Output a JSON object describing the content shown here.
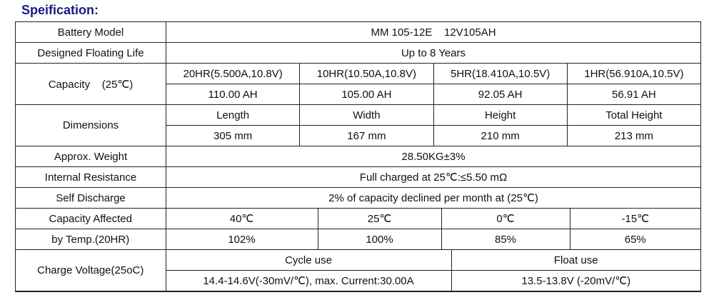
{
  "title": "Speification:",
  "battery_model": {
    "label": "Battery Model",
    "value": "MM 105-12E    12V105AH"
  },
  "floating_life": {
    "label": "Designed Floating Life",
    "value": "Up to 8 Years"
  },
  "capacity": {
    "label": "Capacity    (25℃)",
    "headers": [
      "20HR(5.500A,10.8V)",
      "10HR(10.50A,10.8V)",
      "5HR(18.410A,10.5V)",
      "1HR(56.910A,10.5V)"
    ],
    "values": [
      "110.00 AH",
      "105.00 AH",
      "92.05 AH",
      "56.91 AH"
    ]
  },
  "dimensions": {
    "label": "Dimensions",
    "headers": [
      "Length",
      "Width",
      "Height",
      "Total Height"
    ],
    "values": [
      "305 mm",
      "167 mm",
      "210 mm",
      "213 mm"
    ]
  },
  "weight": {
    "label": "Approx. Weight",
    "value": "28.50KG±3%"
  },
  "resistance": {
    "label": "Internal Resistance",
    "value": "Full charged at 25℃:≤5.50 mΩ"
  },
  "self_discharge": {
    "label": "Self Discharge",
    "value": "2% of capacity declined per month at (25℃)"
  },
  "temp": {
    "label1": "Capacity Affected",
    "label2": "by Temp.(20HR)",
    "headers": [
      "40℃",
      "25℃",
      "0℃",
      "-15℃"
    ],
    "values": [
      "102%",
      "100%",
      "85%",
      "65%"
    ]
  },
  "charge": {
    "label": "Charge Voltage(25oC)",
    "headers": [
      "Cycle use",
      "Float use"
    ],
    "values": [
      "14.4-14.6V(-30mV/℃), max. Current:30.00A",
      "13.5-13.8V (-20mV/℃)"
    ]
  }
}
